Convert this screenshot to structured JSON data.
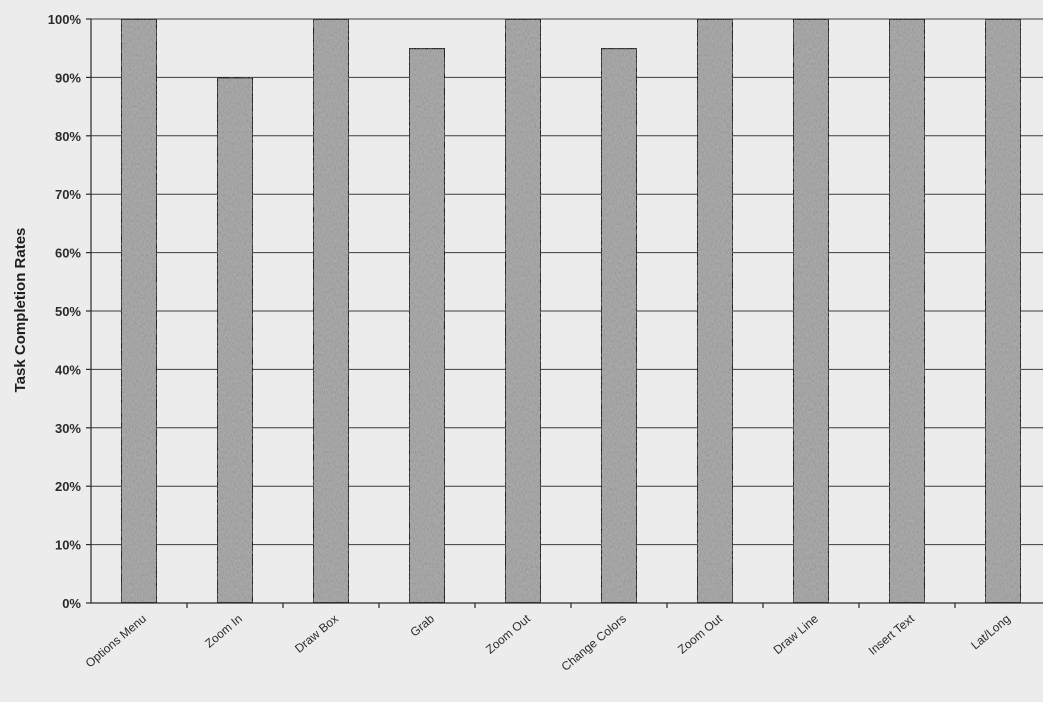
{
  "chart_data": {
    "type": "bar",
    "title": "",
    "xlabel": "",
    "ylabel": "Task Completion Rates",
    "categories": [
      "Options Menu",
      "Zoom In",
      "Draw Box",
      "Grab",
      "Zoom Out",
      "Change Colors",
      "Zoom Out",
      "Draw Line",
      "Insert Text",
      "Lat/Long"
    ],
    "values": [
      100,
      90,
      100,
      95,
      100,
      95,
      100,
      100,
      100,
      100
    ],
    "ylim": [
      0,
      100
    ],
    "yticks": [
      "0%",
      "10%",
      "20%",
      "30%",
      "40%",
      "50%",
      "60%",
      "70%",
      "80%",
      "90%",
      "100%"
    ],
    "grid": true,
    "legend": "none",
    "bar_color": "#a9a9a9",
    "bar_edge_color": "#1e1e1e",
    "grid_color": "#3c3c3c",
    "background_color": "#ececec"
  }
}
